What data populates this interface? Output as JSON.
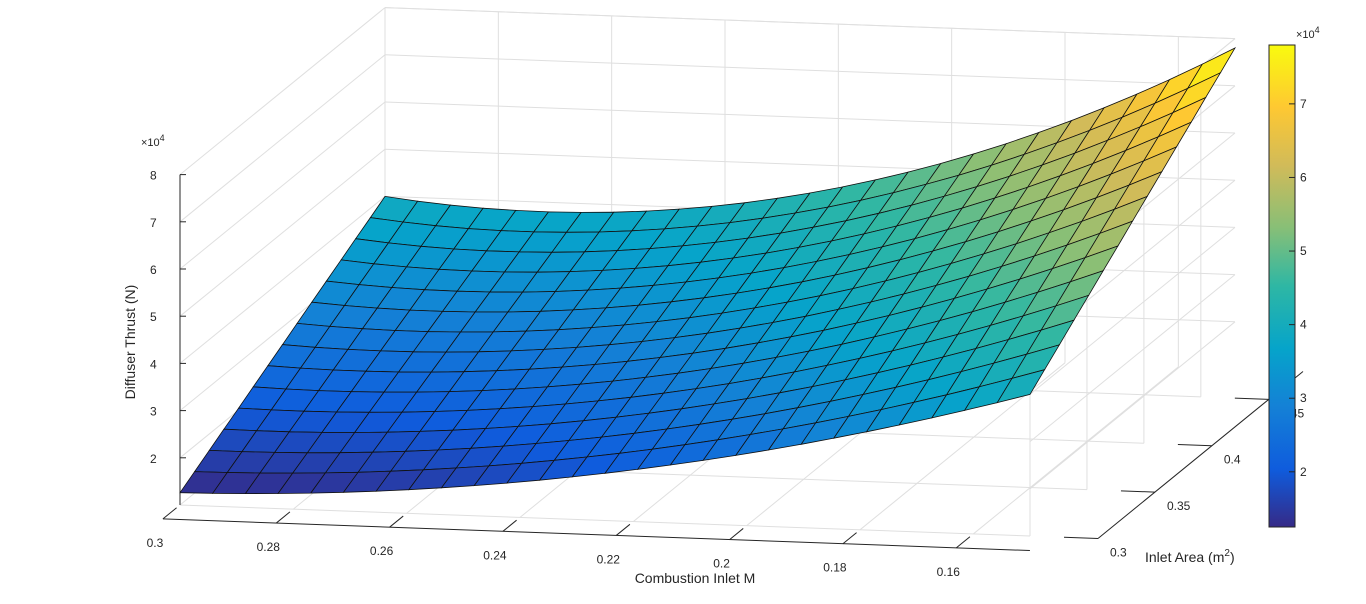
{
  "chart_data": {
    "type": "surface",
    "title": "",
    "xlabel": "Combustion Inlet M",
    "ylabel": "Inlet Area (m",
    "ylabel_sup": "2",
    "ylabel_close": ")",
    "zlabel": "Diffuser Thrust (N)",
    "z_exponent": "×10",
    "z_exponent_power": "4",
    "colorbar_exponent": "×10",
    "colorbar_exponent_power": "4",
    "x_range": [
      0.15,
      0.3
    ],
    "y_range": [
      0.3,
      0.48
    ],
    "z_range": [
      10000,
      80000
    ],
    "x_ticks": [
      {
        "v": 0.3,
        "label": "0.3"
      },
      {
        "v": 0.28,
        "label": "0.28"
      },
      {
        "v": 0.26,
        "label": "0.26"
      },
      {
        "v": 0.24,
        "label": "0.24"
      },
      {
        "v": 0.22,
        "label": "0.22"
      },
      {
        "v": 0.2,
        "label": "0.2"
      },
      {
        "v": 0.18,
        "label": "0.18"
      },
      {
        "v": 0.16,
        "label": "0.16"
      }
    ],
    "y_ticks": [
      {
        "v": 0.3,
        "label": "0.3"
      },
      {
        "v": 0.35,
        "label": "0.35"
      },
      {
        "v": 0.4,
        "label": "0.4"
      },
      {
        "v": 0.45,
        "label": "0.45"
      }
    ],
    "z_ticks": [
      {
        "v": 20000,
        "label": "2"
      },
      {
        "v": 30000,
        "label": "3"
      },
      {
        "v": 40000,
        "label": "4"
      },
      {
        "v": 50000,
        "label": "5"
      },
      {
        "v": 60000,
        "label": "6"
      },
      {
        "v": 70000,
        "label": "7"
      },
      {
        "v": 80000,
        "label": "8"
      }
    ],
    "colorbar_ticks": [
      {
        "v": 20000,
        "label": "2"
      },
      {
        "v": 30000,
        "label": "3"
      },
      {
        "v": 40000,
        "label": "4"
      },
      {
        "v": 50000,
        "label": "5"
      },
      {
        "v": 60000,
        "label": "6"
      },
      {
        "v": 70000,
        "label": "7"
      }
    ],
    "colorbar_range": [
      12500,
      78000
    ],
    "grid": true,
    "colormap": "parula",
    "surface": {
      "x_start": 0.3,
      "x_end": 0.15,
      "x_steps": 26,
      "y_start": 0.3,
      "y_end": 0.48,
      "y_steps": 14,
      "corners": {
        "x0.30_y0.30": 12600,
        "x0.30_y0.48": 40000,
        "x0.15_y0.30": 40000,
        "x0.15_y0.48": 78000
      },
      "mid_values": {
        "x0.225_y0.30": 20000,
        "x0.225_y0.48": 44000
      }
    }
  }
}
